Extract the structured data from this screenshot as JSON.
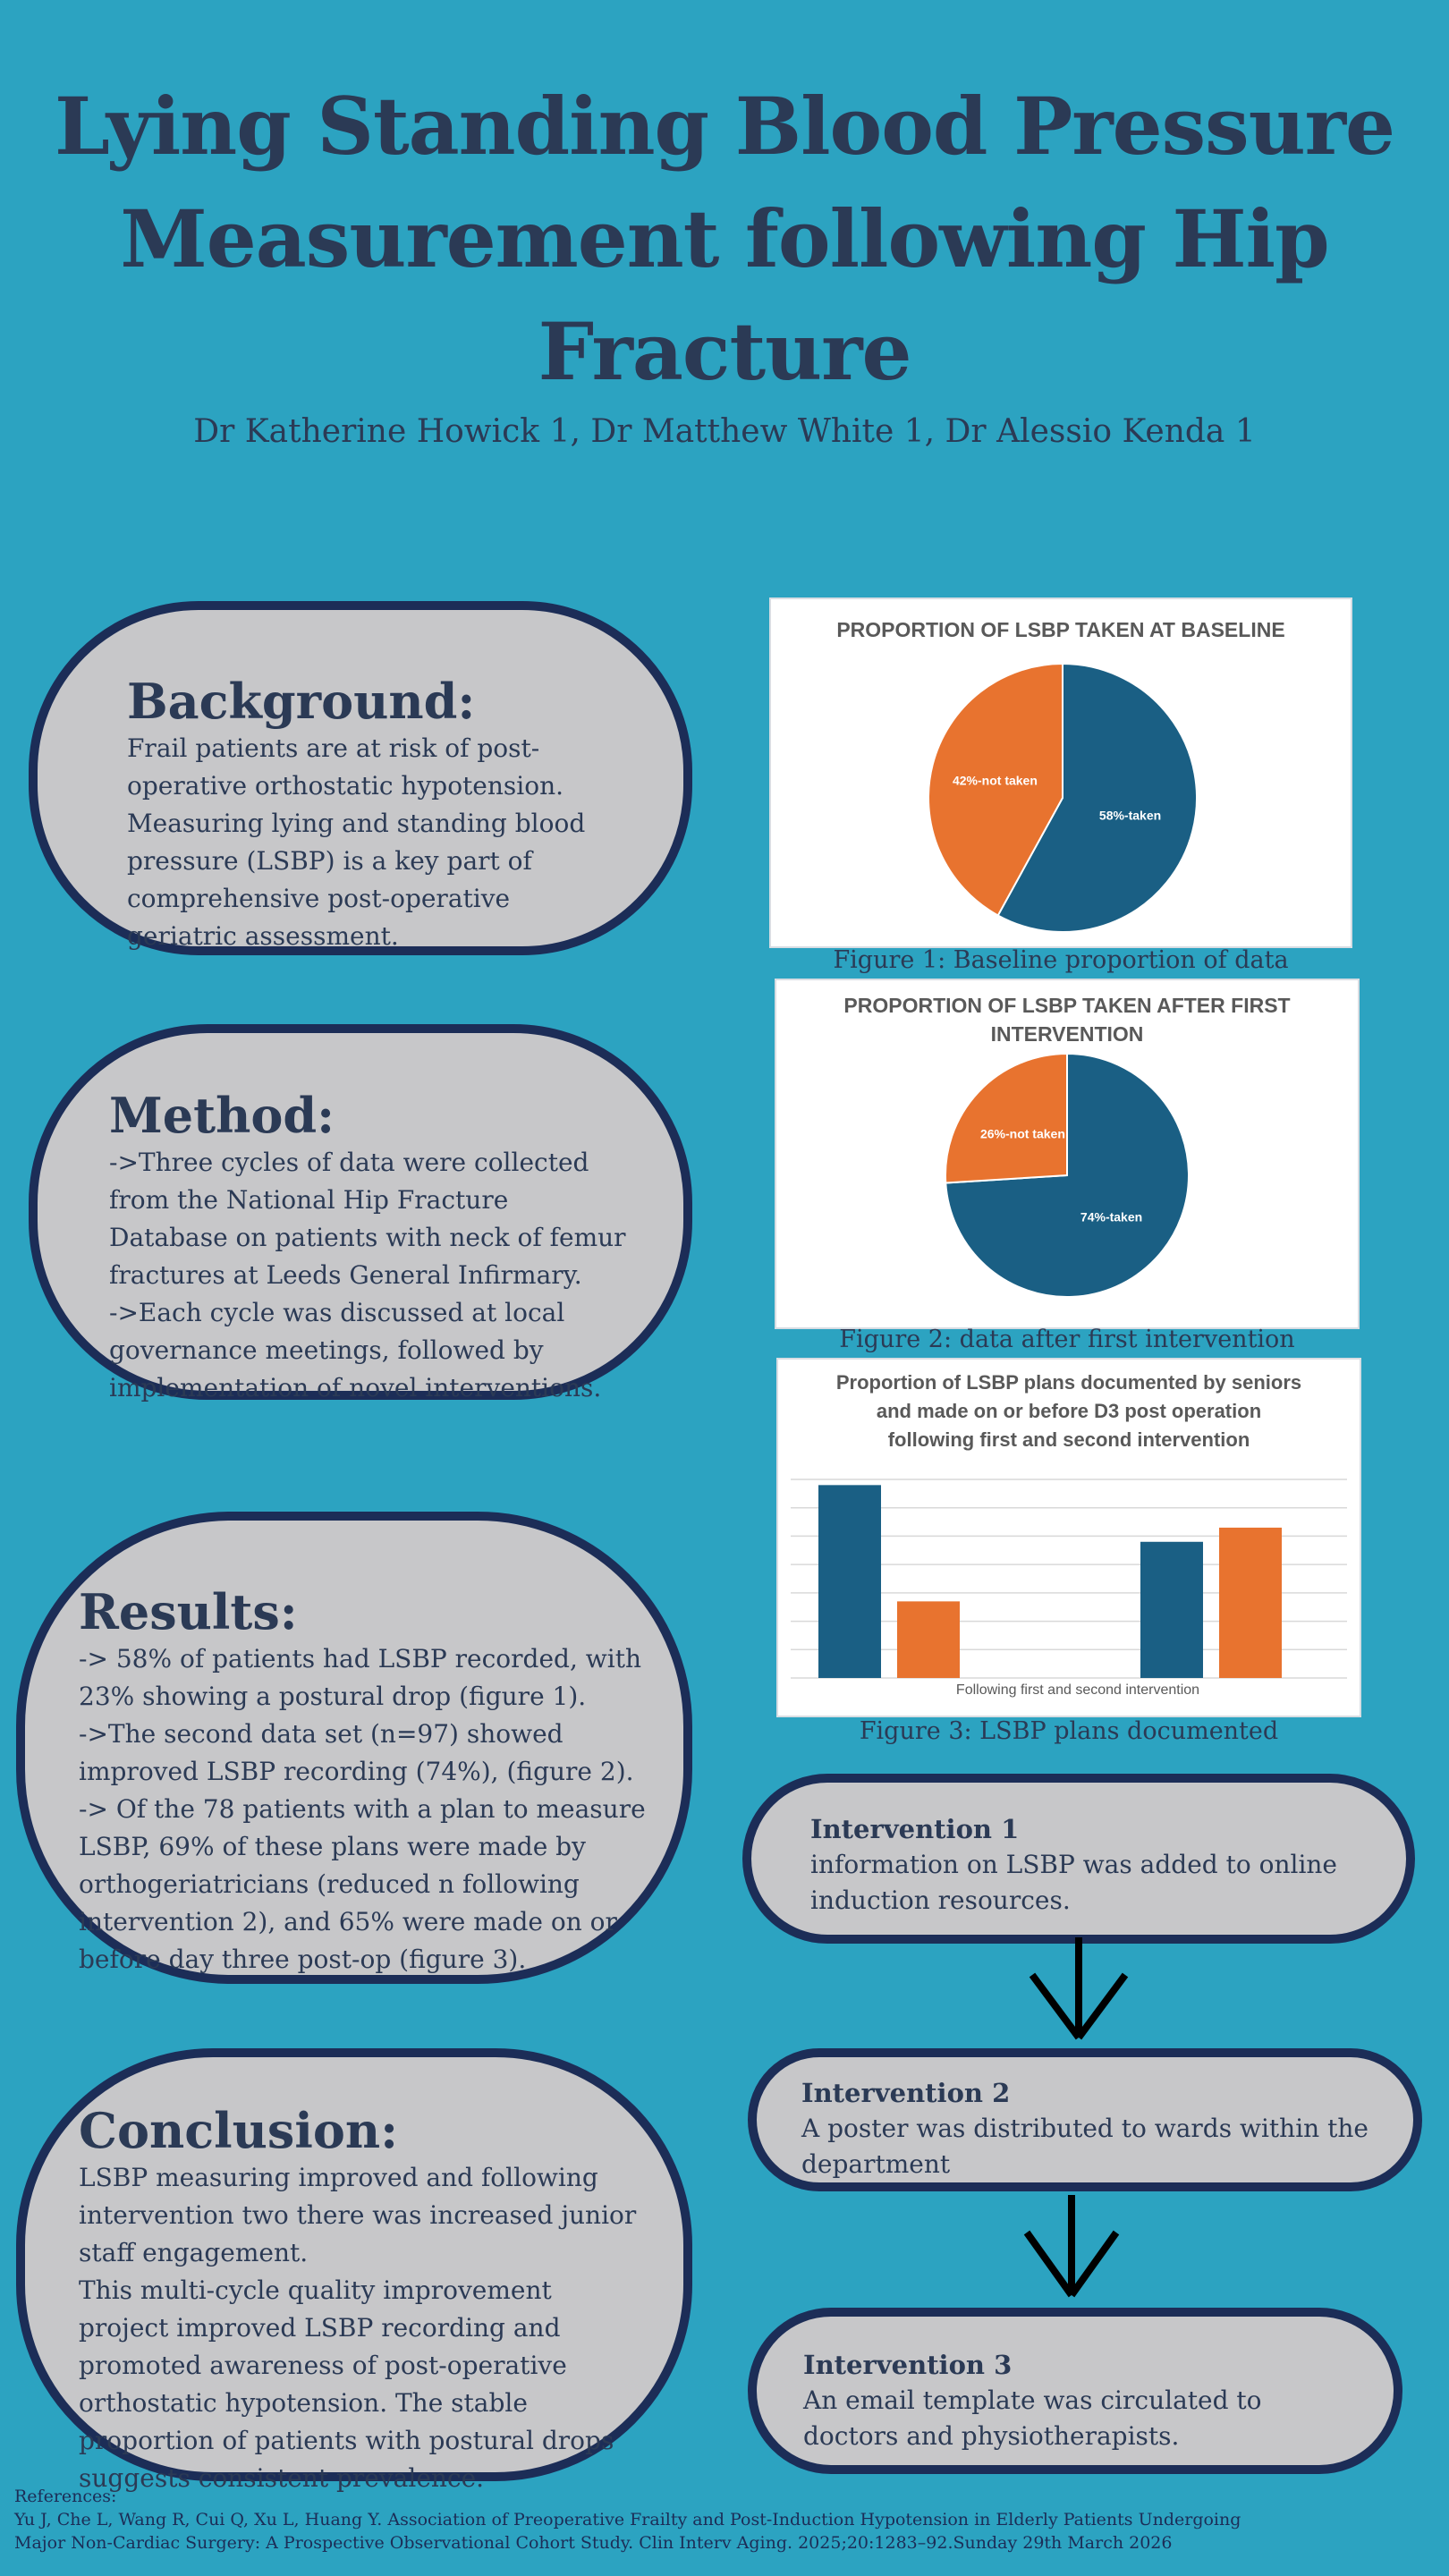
{
  "title": {
    "line1": "Lying Standing Blood Pressure",
    "line2": "Measurement following Hip",
    "line3": "Fracture"
  },
  "authors": "Dr Katherine Howick  1, Dr Matthew White 1, Dr Alessio Kenda 1",
  "background": {
    "heading": "Background:",
    "body": "Frail patients are at risk of post-operative orthostatic hypotension. Measuring lying and standing blood pressure (LSBP) is a key part of comprehensive post-operative geriatric assessment."
  },
  "method": {
    "heading": "Method:",
    "lines": [
      "->Three cycles of data were collected from the National Hip Fracture Database on patients with neck of femur fractures at Leeds General Infirmary.",
      "->Each cycle was discussed at local governance meetings, followed by implementation of novel interventions."
    ]
  },
  "results": {
    "heading": "Results:",
    "lines": [
      "-> 58% of patients had LSBP recorded, with 23% showing a postural drop (figure 1).",
      "->The second data set (n=97) showed improved LSBP recording (74%), (figure 2).",
      "-> Of the 78 patients with a plan to measure LSBP, 69% of these plans were made by orthogeriatricians (reduced n following intervention 2), and 65% were made on or before day three post-op (figure 3)."
    ]
  },
  "conclusion": {
    "heading": "Conclusion:",
    "lines": [
      "LSBP  measuring improved  and following intervention two  there was increased junior staff engagement.",
      "This multi-cycle quality improvement project improved LSBP recording and promoted awareness of post-operative orthostatic hypotension. The stable proportion of patients with postural drops suggests consistent prevalence."
    ]
  },
  "figures": {
    "fig1": {
      "title": "PROPORTION OF LSBP TAKEN AT BASELINE",
      "caption": "Figure 1: Baseline proportion of data"
    },
    "fig2": {
      "title_line1": "PROPORTION OF LSBP TAKEN AFTER FIRST",
      "title_line2": "INTERVENTION",
      "caption": "Figure 2: data after first intervention"
    },
    "fig3": {
      "title_line1": "Proportion of LSBP plans documented by seniors",
      "title_line2": "and made on or before D3 post operation",
      "title_line3": "following first and second intervention",
      "caption": "Figure 3: LSBP plans documented"
    }
  },
  "chart_data": [
    {
      "type": "pie",
      "title": "PROPORTION OF LSBP TAKEN AT BASELINE",
      "slices": [
        {
          "label": "58%-taken",
          "value": 58,
          "color": "#1a5f84"
        },
        {
          "label": "42%-not taken",
          "value": 42,
          "color": "#e8732f"
        }
      ]
    },
    {
      "type": "pie",
      "title": "PROPORTION OF LSBP TAKEN AFTER FIRST INTERVENTION",
      "slices": [
        {
          "label": "74%-taken",
          "value": 74,
          "color": "#1a5f84"
        },
        {
          "label": "26%-not taken",
          "value": 26,
          "color": "#e8732f"
        }
      ]
    },
    {
      "type": "bar",
      "title": "Proportion of LSBP plans documented by seniors and made on or before D3 post operation following first and second intervention",
      "xlabel": "Following first and second intervention",
      "grid": true,
      "ylim": [
        0,
        7
      ],
      "categories": [
        "",
        ""
      ],
      "series": [
        {
          "values": [
            6.8,
            4.8
          ],
          "color": "#1a5f84"
        },
        {
          "values": [
            2.7,
            5.3
          ],
          "color": "#e8732f"
        }
      ]
    }
  ],
  "interventions": [
    {
      "title": "Intervention 1",
      "text": " information on LSBP was added to online induction resources."
    },
    {
      "title": "Intervention 2",
      "text": "A poster was distributed to wards within the department"
    },
    {
      "title": "Intervention 3",
      "text": "An  email template was circulated to doctors and physiotherapists."
    }
  ],
  "references": {
    "heading": "References:",
    "line1": "Yu J, Che L, Wang R, Cui Q, Xu L, Huang Y. Association of Preoperative Frailty and Post-Induction Hypotension in Elderly Patients Undergoing",
    "line2": "Major Non-Cardiac Surgery: A Prospective Observational Cohort Study. Clin Interv Aging. 2025;20:1283–92.Sunday 29th March 2026"
  },
  "colors": {
    "background": "#2ca3c1",
    "pill": "#c7c7c9",
    "border": "#1c2d57",
    "text": "#2b3a55",
    "blue": "#1a5f84",
    "orange": "#e8732f"
  }
}
